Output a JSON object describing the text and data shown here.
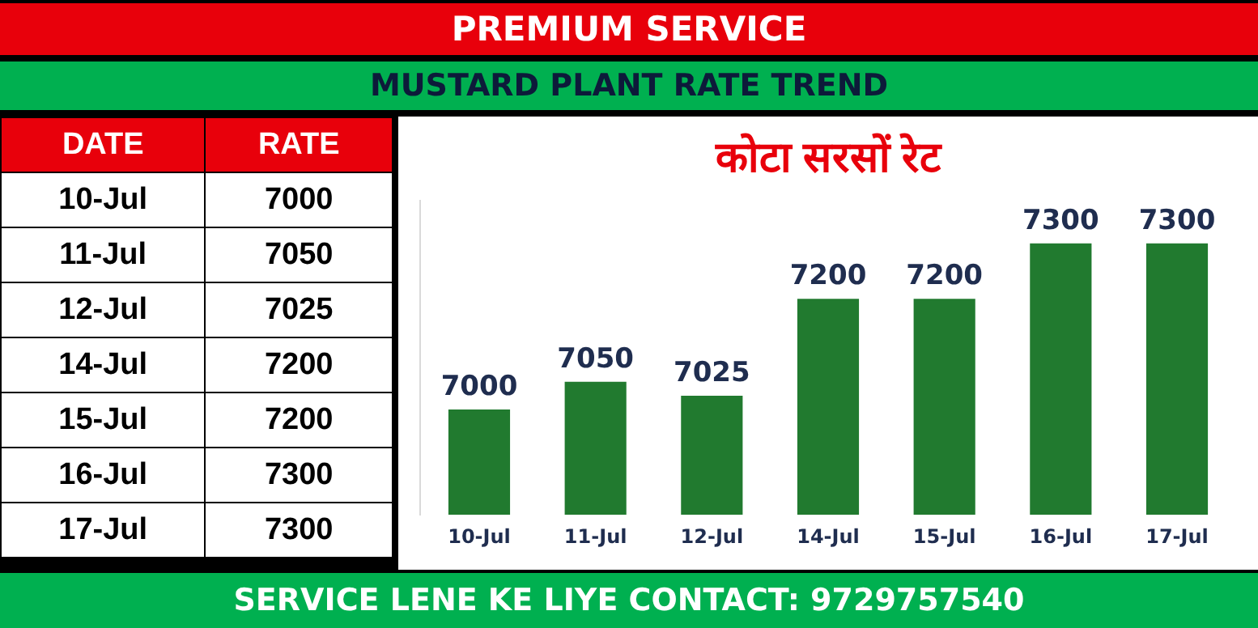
{
  "chart_data": {
    "type": "bar",
    "title": "PREMIUM SERVICE",
    "subtitle": "MUSTARD PLANT RATE TREND",
    "annotations": [
      "कोटा सरसों रेट",
      "DATE",
      "RATE",
      "SERVICE LENE KE LIYE CONTACT: 9729757540"
    ],
    "categories": [
      "10-Jul",
      "11-Jul",
      "12-Jul",
      "14-Jul",
      "15-Jul",
      "16-Jul",
      "17-Jul"
    ],
    "values": [
      7000,
      7050,
      7025,
      7200,
      7200,
      7300,
      7300
    ],
    "value_labels": [
      "7000",
      "7050",
      "7025",
      "7200",
      "7200",
      "7300",
      "7300"
    ],
    "color": "#217a2f",
    "ylim": [
      6810,
      7380
    ],
    "tick_labels": "x"
  }
}
